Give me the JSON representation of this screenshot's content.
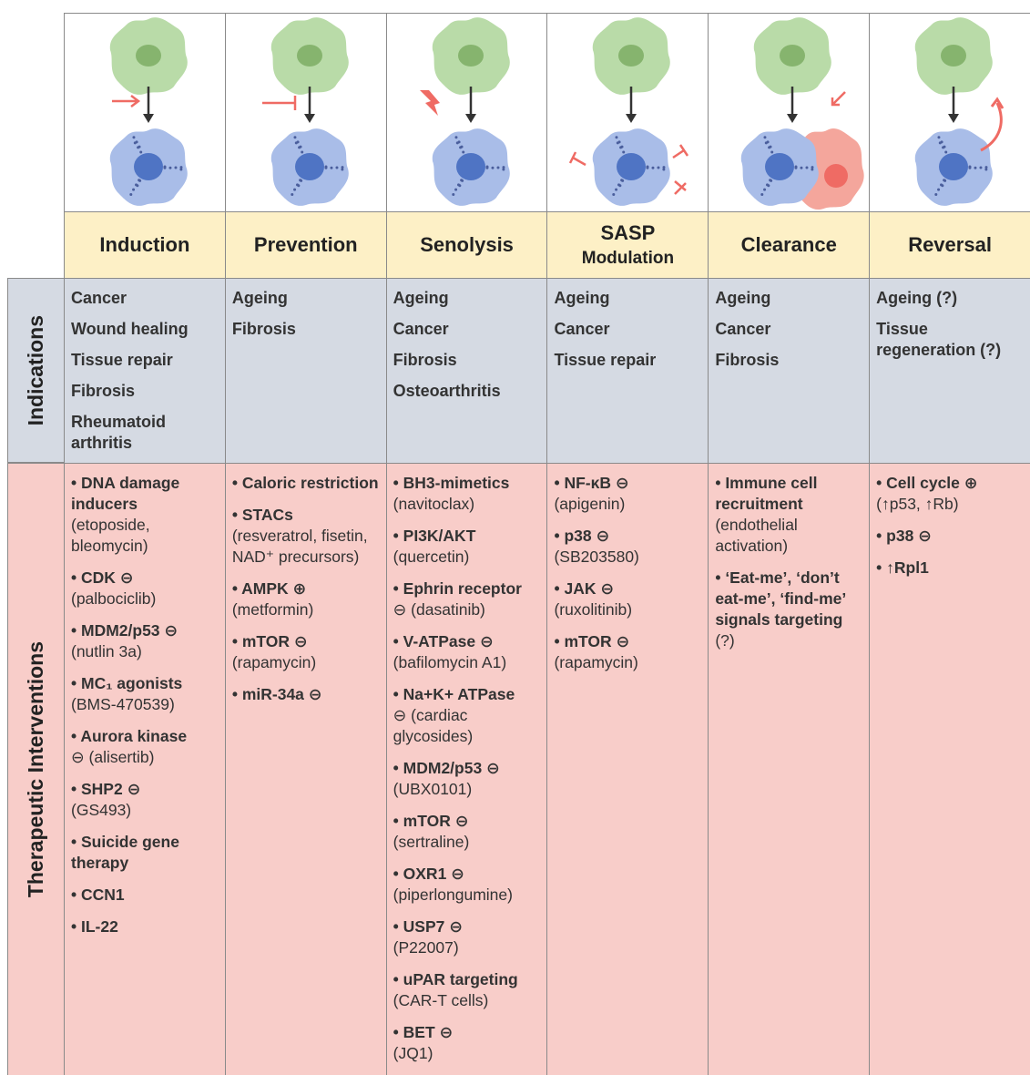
{
  "row_labels": {
    "indications": "Indications",
    "interventions": "Therapeutic Interventions"
  },
  "columns": [
    {
      "title": "Induction",
      "indications": [
        "Cancer",
        "Wound healing",
        "Tissue repair",
        "Fibrosis",
        "Rheumatoid arthritis"
      ],
      "interventions": [
        {
          "name": "• DNA damage inducers",
          "detail": "(etoposide, bleomycin)"
        },
        {
          "name": "• CDK ⊖",
          "detail": "(palbociclib)"
        },
        {
          "name": "• MDM2/p53 ⊖",
          "detail": "(nutlin 3a)"
        },
        {
          "name": "• MC₁ agonists",
          "detail": "(BMS-470539)"
        },
        {
          "name": "• Aurora kinase",
          "detail": "⊖ (alisertib)"
        },
        {
          "name": "• SHP2 ⊖",
          "detail": "(GS493)"
        },
        {
          "name": "• Suicide gene therapy"
        },
        {
          "name": "• CCN1"
        },
        {
          "name": "• IL-22"
        }
      ]
    },
    {
      "title": "Prevention",
      "indications": [
        "Ageing",
        "Fibrosis"
      ],
      "interventions": [
        {
          "name": "• Caloric restriction"
        },
        {
          "name": "• STACs",
          "detail": "(resveratrol, fisetin, NAD⁺ precursors)"
        },
        {
          "name": "• AMPK ⊕",
          "detail": "(metformin)"
        },
        {
          "name": "• mTOR ⊖",
          "detail": "(rapamycin)"
        },
        {
          "name": "• miR-34a ⊖"
        }
      ]
    },
    {
      "title": "Senolysis",
      "indications": [
        "Ageing",
        "Cancer",
        "Fibrosis",
        "Osteoarthritis"
      ],
      "interventions": [
        {
          "name": "• BH3-mimetics",
          "detail": "(navitoclax)"
        },
        {
          "name": "• PI3K/AKT",
          "detail": "(quercetin)"
        },
        {
          "name": "• Ephrin receptor",
          "detail": "⊖ (dasatinib)"
        },
        {
          "name": "• V-ATPase ⊖",
          "detail": "(bafilomycin A1)"
        },
        {
          "name": "• Na+K+ ATPase",
          "detail": "⊖ (cardiac glycosides)"
        },
        {
          "name": "• MDM2/p53 ⊖",
          "detail": "(UBX0101)"
        },
        {
          "name": "• mTOR ⊖",
          "detail": "(sertraline)"
        },
        {
          "name": "• OXR1 ⊖",
          "detail": "(piperlongumine)"
        },
        {
          "name": "• USP7 ⊖",
          "detail": "(P22007)"
        },
        {
          "name": "• uPAR targeting",
          "detail": "(CAR-T cells)"
        },
        {
          "name": "• BET ⊖",
          "detail": "(JQ1)"
        }
      ]
    },
    {
      "title": "SASP",
      "subtitle": "Modulation",
      "indications": [
        "Ageing",
        "Cancer",
        "Tissue repair"
      ],
      "interventions": [
        {
          "name": "• NF-κB ⊖",
          "detail": "(apigenin)"
        },
        {
          "name": "• p38 ⊖",
          "detail": "(SB203580)"
        },
        {
          "name": "• JAK ⊖",
          "detail": "(ruxolitinib)"
        },
        {
          "name": "• mTOR ⊖",
          "detail": "(rapamycin)"
        }
      ]
    },
    {
      "title": "Clearance",
      "indications": [
        "Ageing",
        "Cancer",
        "Fibrosis"
      ],
      "interventions": [
        {
          "name": "• Immune cell recruitment",
          "detail": "(endothelial activation)"
        },
        {
          "name": "• ‘Eat-me’, ‘don’t eat-me’, ‘find-me’ signals targeting",
          "detail": "(?)"
        }
      ]
    },
    {
      "title": "Reversal",
      "indications": [
        "Ageing (?)",
        "Tissue regeneration (?)"
      ],
      "interventions": [
        {
          "name": "• Cell cycle ⊕",
          "detail": "(↑p53, ↑Rb)"
        },
        {
          "name": "• p38 ⊖"
        },
        {
          "name": "• ↑Rpl1"
        }
      ]
    }
  ]
}
